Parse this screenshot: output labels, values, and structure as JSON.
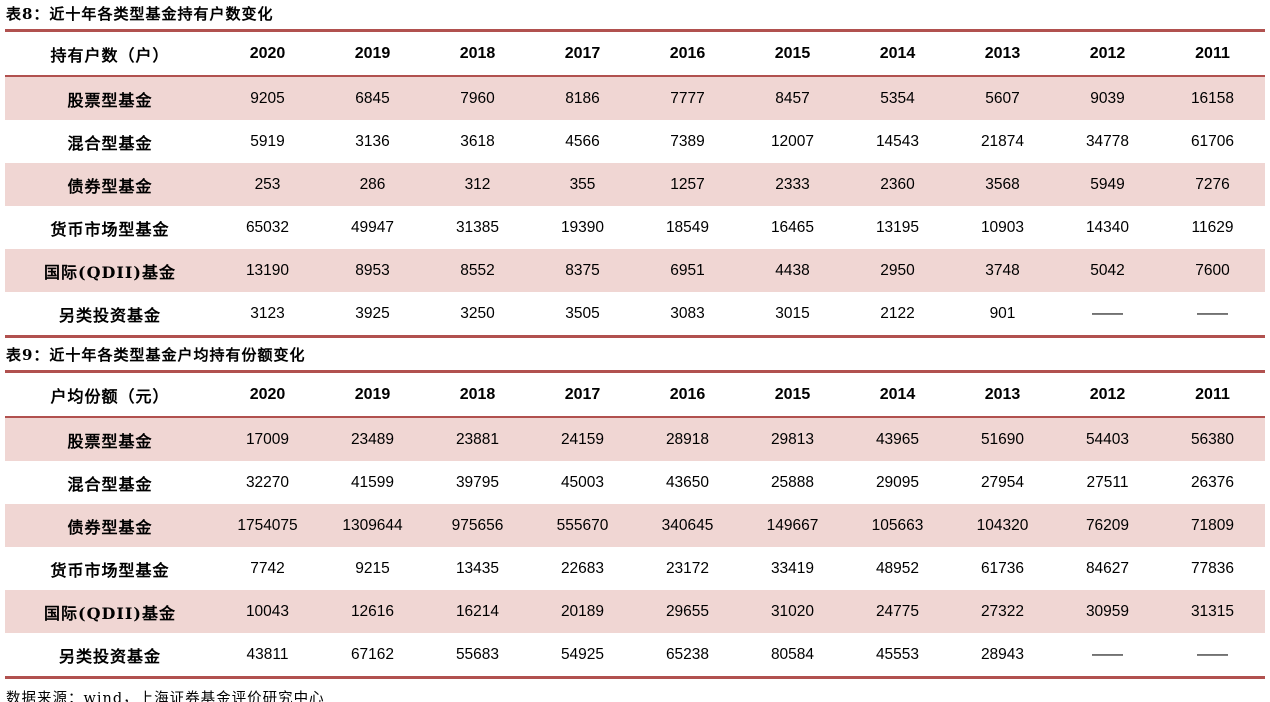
{
  "page": {
    "source_note": "数据来源：wind，上海证券基金评价研究中心"
  },
  "colors": {
    "accent_red": "#b1514f",
    "stripe_pink": "#f0d6d3",
    "text": "#000000",
    "background": "#ffffff"
  },
  "tables": [
    {
      "title": "表8：近十年各类型基金持有户数变化",
      "unit_header": "持有户数（户）",
      "years": [
        "2020",
        "2019",
        "2018",
        "2017",
        "2016",
        "2015",
        "2014",
        "2013",
        "2012",
        "2011"
      ],
      "rows": [
        {
          "label": "股票型基金",
          "values": [
            "9205",
            "6845",
            "7960",
            "8186",
            "7777",
            "8457",
            "5354",
            "5607",
            "9039",
            "16158"
          ]
        },
        {
          "label": "混合型基金",
          "values": [
            "5919",
            "3136",
            "3618",
            "4566",
            "7389",
            "12007",
            "14543",
            "21874",
            "34778",
            "61706"
          ]
        },
        {
          "label": "债券型基金",
          "values": [
            "253",
            "286",
            "312",
            "355",
            "1257",
            "2333",
            "2360",
            "3568",
            "5949",
            "7276"
          ]
        },
        {
          "label": "货币市场型基金",
          "values": [
            "65032",
            "49947",
            "31385",
            "19390",
            "18549",
            "16465",
            "13195",
            "10903",
            "14340",
            "11629"
          ]
        },
        {
          "label": "国际(QDII)基金",
          "values": [
            "13190",
            "8953",
            "8552",
            "8375",
            "6951",
            "4438",
            "2950",
            "3748",
            "5042",
            "7600"
          ]
        },
        {
          "label": "另类投资基金",
          "values": [
            "3123",
            "3925",
            "3250",
            "3505",
            "3083",
            "3015",
            "2122",
            "901",
            "——",
            "——"
          ]
        }
      ]
    },
    {
      "title": "表9：近十年各类型基金户均持有份额变化",
      "unit_header": "户均份额（元）",
      "years": [
        "2020",
        "2019",
        "2018",
        "2017",
        "2016",
        "2015",
        "2014",
        "2013",
        "2012",
        "2011"
      ],
      "rows": [
        {
          "label": "股票型基金",
          "values": [
            "17009",
            "23489",
            "23881",
            "24159",
            "28918",
            "29813",
            "43965",
            "51690",
            "54403",
            "56380"
          ]
        },
        {
          "label": "混合型基金",
          "values": [
            "32270",
            "41599",
            "39795",
            "45003",
            "43650",
            "25888",
            "29095",
            "27954",
            "27511",
            "26376"
          ]
        },
        {
          "label": "债券型基金",
          "values": [
            "1754075",
            "1309644",
            "975656",
            "555670",
            "340645",
            "149667",
            "105663",
            "104320",
            "76209",
            "71809"
          ]
        },
        {
          "label": "货币市场型基金",
          "values": [
            "7742",
            "9215",
            "13435",
            "22683",
            "23172",
            "33419",
            "48952",
            "61736",
            "84627",
            "77836"
          ]
        },
        {
          "label": "国际(QDII)基金",
          "values": [
            "10043",
            "12616",
            "16214",
            "20189",
            "29655",
            "31020",
            "24775",
            "27322",
            "30959",
            "31315"
          ]
        },
        {
          "label": "另类投资基金",
          "values": [
            "43811",
            "67162",
            "55683",
            "54925",
            "65238",
            "80584",
            "45553",
            "28943",
            "——",
            "——"
          ]
        }
      ]
    }
  ]
}
